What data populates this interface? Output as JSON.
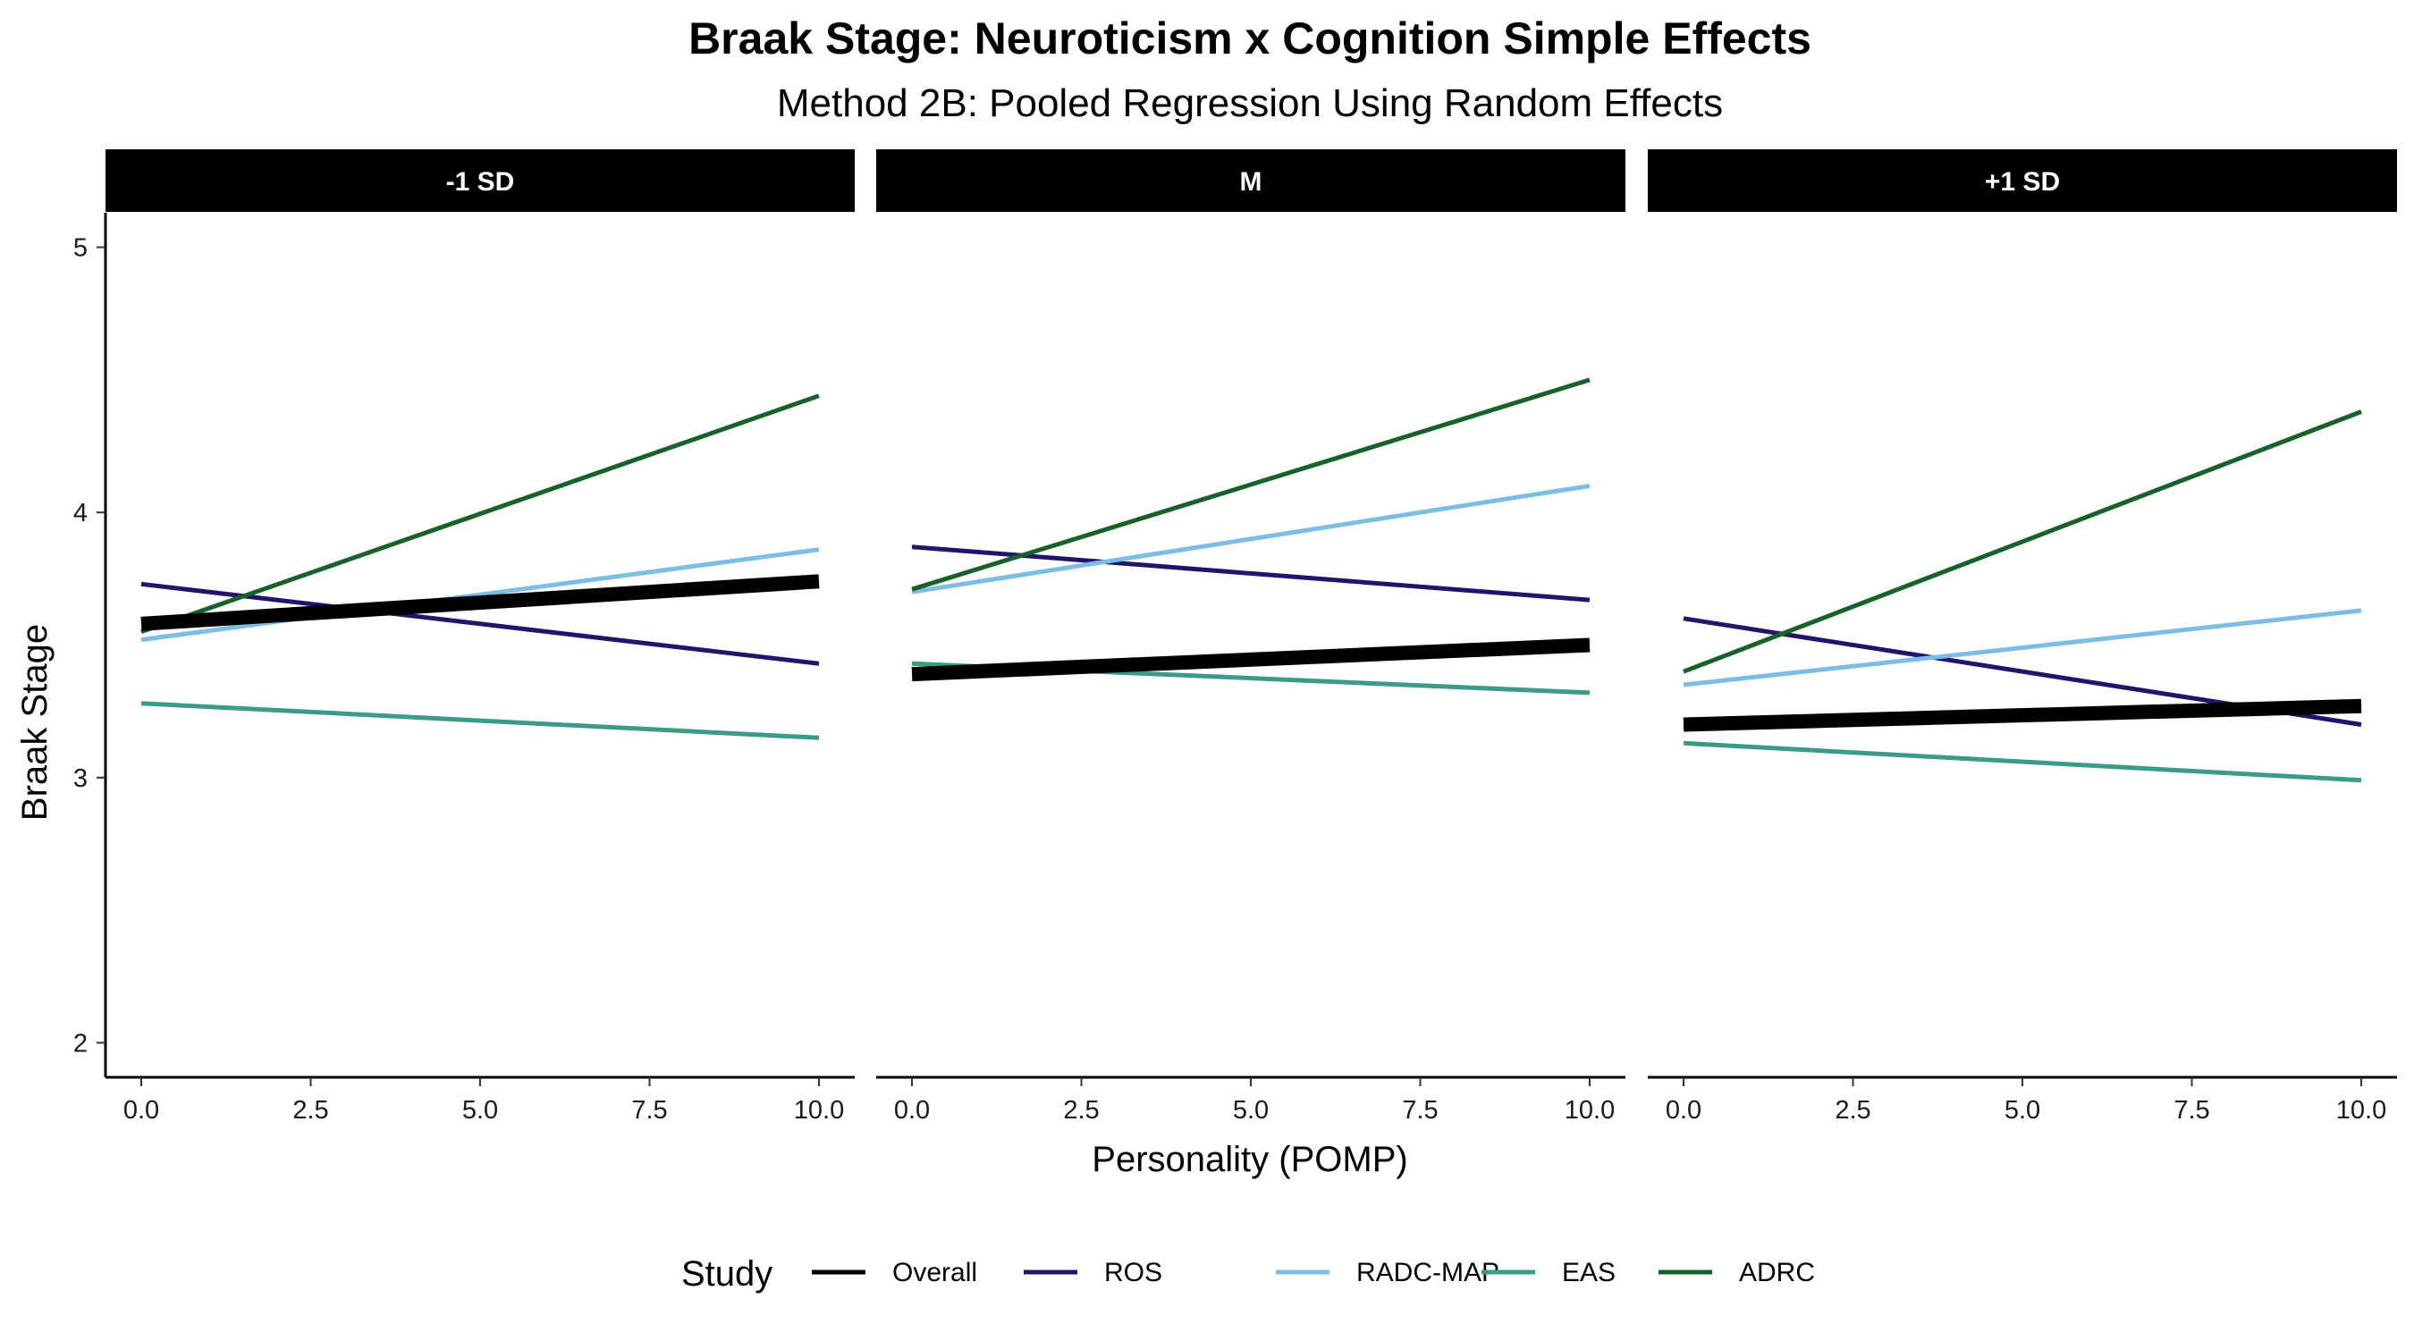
{
  "chart_data": {
    "type": "line",
    "title": "Braak Stage: Neuroticism x Cognition Simple Effects",
    "subtitle": "Method 2B: Pooled Regression Using Random Effects",
    "xlabel": "Personality (POMP)",
    "ylabel": "Braak Stage",
    "xlim": [
      0,
      10
    ],
    "ylim": [
      2,
      5
    ],
    "x_ticks": [
      "0.0",
      "2.5",
      "5.0",
      "7.5",
      "10.0"
    ],
    "x_tick_values": [
      0,
      2.5,
      5,
      7.5,
      10
    ],
    "y_ticks": [
      "2",
      "3",
      "4",
      "5"
    ],
    "y_tick_values": [
      2,
      3,
      4,
      5
    ],
    "grid": false,
    "legend_title": "Study",
    "legend_position": "bottom",
    "legend": [
      {
        "name": "Overall",
        "color": "#000000",
        "width": 5
      },
      {
        "name": "ROS",
        "color": "#22146b",
        "width": 5
      },
      {
        "name": "RADC-MAP",
        "color": "#7cbde6",
        "width": 5
      },
      {
        "name": "EAS",
        "color": "#3a9b88",
        "width": 5
      },
      {
        "name": "ADRC",
        "color": "#17622a",
        "width": 5
      }
    ],
    "panels": [
      {
        "label": "-1 SD",
        "series": [
          {
            "name": "Overall",
            "x": [
              0,
              10
            ],
            "y": [
              3.58,
              3.74
            ]
          },
          {
            "name": "ROS",
            "x": [
              0,
              10
            ],
            "y": [
              3.73,
              3.43
            ]
          },
          {
            "name": "RADC-MAP",
            "x": [
              0,
              10
            ],
            "y": [
              3.52,
              3.86
            ]
          },
          {
            "name": "EAS",
            "x": [
              0,
              10
            ],
            "y": [
              3.28,
              3.15
            ]
          },
          {
            "name": "ADRC",
            "x": [
              0,
              10
            ],
            "y": [
              3.55,
              4.44
            ]
          }
        ]
      },
      {
        "label": "M",
        "series": [
          {
            "name": "Overall",
            "x": [
              0,
              10
            ],
            "y": [
              3.39,
              3.5
            ]
          },
          {
            "name": "ROS",
            "x": [
              0,
              10
            ],
            "y": [
              3.87,
              3.67
            ]
          },
          {
            "name": "RADC-MAP",
            "x": [
              0,
              10
            ],
            "y": [
              3.7,
              4.1
            ]
          },
          {
            "name": "EAS",
            "x": [
              0,
              10
            ],
            "y": [
              3.43,
              3.32
            ]
          },
          {
            "name": "ADRC",
            "x": [
              0,
              10
            ],
            "y": [
              3.71,
              4.5
            ]
          }
        ]
      },
      {
        "label": "+1 SD",
        "series": [
          {
            "name": "Overall",
            "x": [
              0,
              10
            ],
            "y": [
              3.2,
              3.27
            ]
          },
          {
            "name": "ROS",
            "x": [
              0,
              10
            ],
            "y": [
              3.6,
              3.2
            ]
          },
          {
            "name": "RADC-MAP",
            "x": [
              0,
              10
            ],
            "y": [
              3.35,
              3.63
            ]
          },
          {
            "name": "EAS",
            "x": [
              0,
              10
            ],
            "y": [
              3.13,
              2.99
            ]
          },
          {
            "name": "ADRC",
            "x": [
              0,
              10
            ],
            "y": [
              3.4,
              4.38
            ]
          }
        ]
      }
    ]
  }
}
